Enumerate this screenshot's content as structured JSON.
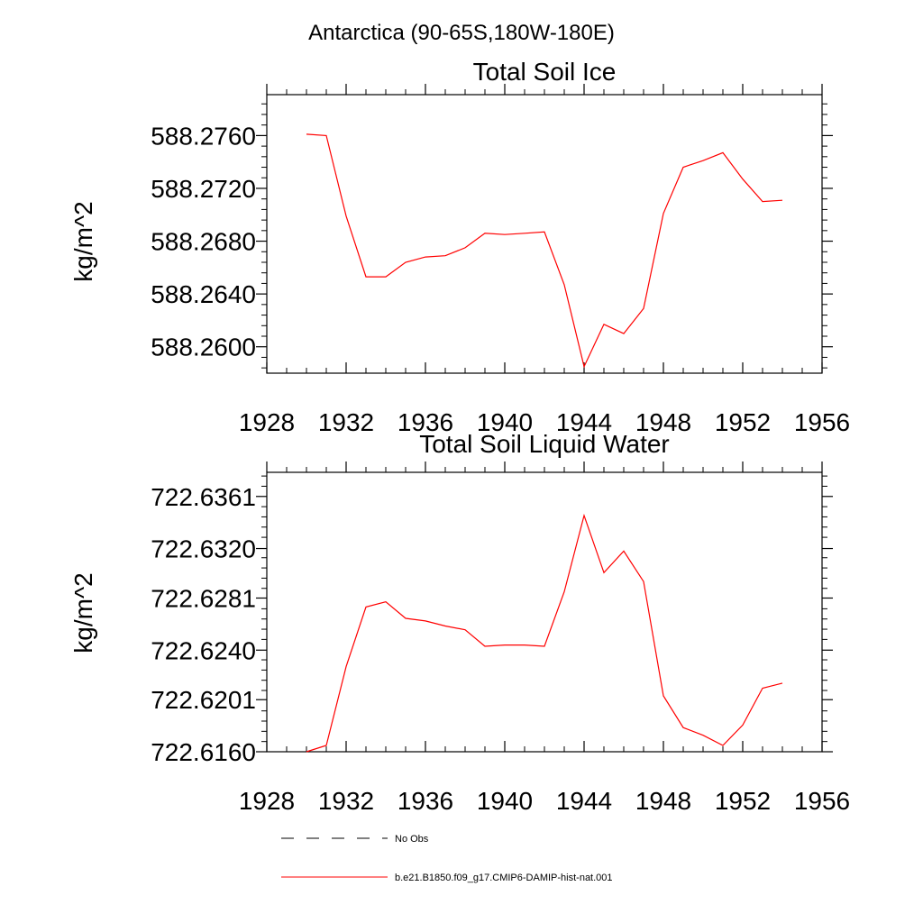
{
  "figure": {
    "suptitle": "Antarctica (90-65S,180W-180E)"
  },
  "legend": {
    "placement": "bottom",
    "entries": [
      {
        "label": "No Obs",
        "style": "dashed",
        "color": "#000000"
      },
      {
        "label": "b.e21.B1850.f09_g17.CMIP6-DAMIP-hist-nat.001",
        "style": "solid",
        "color": "#ff0000"
      }
    ]
  },
  "chart_data": [
    {
      "type": "line",
      "title": "Total Soil Ice",
      "ylabel": "kg/m^2",
      "xlabel": "",
      "xlim": [
        1928,
        1956
      ],
      "ylim": [
        588.258,
        588.2791
      ],
      "xticks": [
        "1928",
        "1932",
        "1936",
        "1940",
        "1944",
        "1948",
        "1952",
        "1956"
      ],
      "yticks": [
        "588.2600",
        "588.2640",
        "588.2680",
        "588.2720",
        "588.2760"
      ],
      "grid": false,
      "series": [
        {
          "color": "#ff0000",
          "x": [
            1930,
            1931,
            1932,
            1933,
            1934,
            1935,
            1936,
            1937,
            1938,
            1939,
            1940,
            1941,
            1942,
            1943,
            1944,
            1945,
            1946,
            1947,
            1948,
            1949,
            1950,
            1951,
            1952,
            1953,
            1954
          ],
          "values": [
            588.2761,
            588.276,
            588.2699,
            588.2653,
            588.2653,
            588.2664,
            588.2668,
            588.2669,
            588.2675,
            588.2686,
            588.2685,
            588.2686,
            588.2687,
            588.2647,
            588.2585,
            588.2617,
            588.261,
            588.2629,
            588.2701,
            588.2736,
            588.2741,
            588.2747,
            588.2727,
            588.271,
            588.2711
          ]
        }
      ]
    },
    {
      "type": "line",
      "title": "Total Soil Liquid Water",
      "ylabel": "kg/m^2",
      "xlabel": "",
      "xlim": [
        1928,
        1956
      ],
      "ylim": [
        722.616,
        722.638
      ],
      "xticks": [
        "1928",
        "1932",
        "1936",
        "1940",
        "1944",
        "1948",
        "1952",
        "1956"
      ],
      "yticks": [
        "722.6160",
        "722.6201",
        "722.6240",
        "722.6281",
        "722.6320",
        "722.6361"
      ],
      "grid": false,
      "series": [
        {
          "color": "#ff0000",
          "x": [
            1930,
            1931,
            1932,
            1933,
            1934,
            1935,
            1936,
            1937,
            1938,
            1939,
            1940,
            1941,
            1942,
            1943,
            1944,
            1945,
            1946,
            1947,
            1948,
            1949,
            1950,
            1951,
            1952,
            1953,
            1954
          ],
          "values": [
            722.616,
            722.6165,
            722.6227,
            722.6274,
            722.6278,
            722.6265,
            722.6263,
            722.6259,
            722.6256,
            722.6243,
            722.6244,
            722.6244,
            722.6243,
            722.6286,
            722.6346,
            722.6301,
            722.6318,
            722.6294,
            722.6204,
            722.6179,
            722.6173,
            722.6165,
            722.6181,
            722.621,
            722.6214
          ]
        }
      ]
    }
  ]
}
